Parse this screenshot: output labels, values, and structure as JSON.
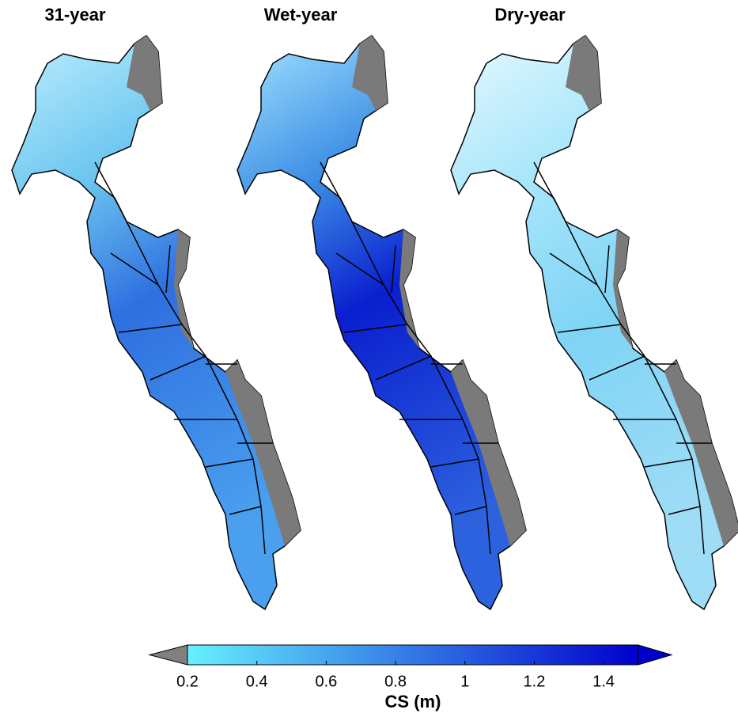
{
  "panels": [
    {
      "title": "31-year"
    },
    {
      "title": "Wet-year"
    },
    {
      "title": "Dry-year"
    }
  ],
  "colorbar": {
    "label": "CS (m)",
    "lim": [
      0.2,
      1.5
    ],
    "ticks": [
      0.2,
      0.4,
      0.6,
      0.8,
      1,
      1.2,
      1.4
    ],
    "low_color": "#66f0ff",
    "high_color": "#0000cc",
    "under_color": "#808080"
  }
}
